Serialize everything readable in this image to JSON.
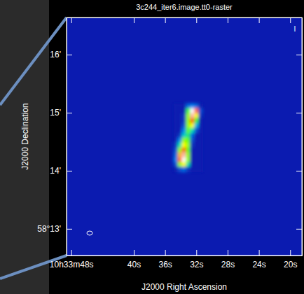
{
  "chart_data": {
    "type": "heatmap",
    "title": "3c244_iter6.image.tt0-raster",
    "x_label": "J2000 Right Ascension",
    "y_label": "J2000 Declination",
    "annotation": "I",
    "xlim": [
      48.6,
      18.5
    ],
    "ylim": [
      12.54,
      16.64
    ],
    "xticks": [
      {
        "value": 48,
        "label": "10h33m48s"
      },
      {
        "value": 40,
        "label": "40s"
      },
      {
        "value": 36,
        "label": "36s"
      },
      {
        "value": 32,
        "label": "32s"
      },
      {
        "value": 28,
        "label": "28s"
      },
      {
        "value": 24,
        "label": "24s"
      },
      {
        "value": 20,
        "label": "20s"
      }
    ],
    "yticks": [
      {
        "value": 13,
        "label": "58°13'"
      },
      {
        "value": 14,
        "label": "14'"
      },
      {
        "value": 15,
        "label": "15'"
      },
      {
        "value": 16,
        "label": "16'"
      }
    ],
    "grid": false,
    "zlim": [
      0,
      1
    ],
    "x_edges": [
      34.93,
      34.4,
      33.87,
      33.33,
      32.8,
      32.27,
      31.73,
      31.2
    ],
    "y_edges": [
      15.16,
      15.08,
      14.99,
      14.91,
      14.82,
      14.74,
      14.65,
      14.57,
      14.49,
      14.4,
      14.32,
      14.23,
      14.15,
      14.07,
      13.98
    ],
    "cells": [
      [
        0,
        0,
        0,
        0.15,
        0.2,
        0.15,
        0
      ],
      [
        0,
        0,
        0,
        0.5,
        1,
        0.9,
        0.1
      ],
      [
        0,
        0,
        0.05,
        0.6,
        0.95,
        0.7,
        0.05
      ],
      [
        0,
        0,
        0.05,
        0.6,
        0.8,
        0.5,
        0
      ],
      [
        0,
        0,
        0.1,
        0.6,
        0.7,
        0.3,
        0
      ],
      [
        0,
        0,
        0.2,
        0.55,
        0.4,
        0.1,
        0
      ],
      [
        0,
        0.05,
        0.35,
        0.45,
        0.15,
        0,
        0
      ],
      [
        0,
        0.2,
        0.6,
        0.55,
        0.1,
        0,
        0
      ],
      [
        0.05,
        0.4,
        0.7,
        0.6,
        0.05,
        0,
        0
      ],
      [
        0.1,
        0.6,
        0.8,
        0.55,
        0,
        0,
        0
      ],
      [
        0.15,
        0.75,
        0.95,
        0.6,
        0,
        0,
        0
      ],
      [
        0.2,
        0.8,
        1,
        0.6,
        0,
        0,
        0
      ],
      [
        0.1,
        0.6,
        0.7,
        0.4,
        0,
        0,
        0
      ],
      [
        0,
        0.1,
        0.15,
        0.05,
        0,
        0,
        0
      ]
    ]
  }
}
